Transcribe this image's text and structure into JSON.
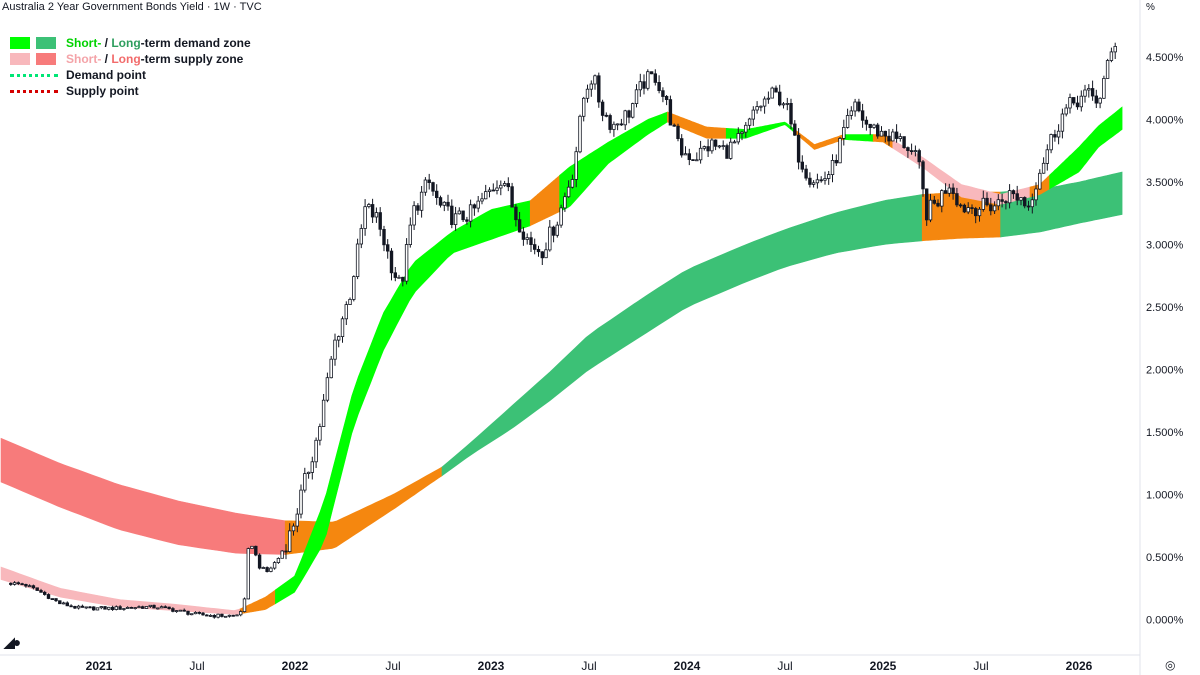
{
  "header": {
    "title": "Australia 2 Year Government Bonds Yield · 1W · TVC",
    "unit": "%"
  },
  "legend": {
    "demand_zone": {
      "short": "Short-",
      "sep": " / ",
      "long": "Long",
      "rest": "-term demand zone"
    },
    "supply_zone": {
      "short": "Short-",
      "sep": " / ",
      "long": "Long",
      "rest": "-term supply zone"
    },
    "demand_point": "Demand point",
    "supply_point": "Supply point"
  },
  "colors": {
    "short_demand": "#00ff00",
    "long_demand": "#3cc176",
    "short_supply": "#f8b8bc",
    "long_supply": "#f77b7b",
    "transition": "#f5870f",
    "demand_point": "#00e676",
    "supply_point": "#d50000",
    "candle": "#131722"
  },
  "icons": {
    "logo": "tradingview-logo-icon",
    "settings": "settings-icon"
  },
  "chart_data": {
    "type": "candlestick",
    "title": "Australia 2 Year Government Bonds Yield · 1W · TVC",
    "xlabel": "",
    "ylabel": "%",
    "x_range": [
      "2020-07",
      "2026-04"
    ],
    "ylim": [
      -0.15,
      4.8
    ],
    "grid": false,
    "legend_position": "top-left",
    "x_ticks": [
      {
        "x": 2021.0,
        "label": "2021",
        "year": true
      },
      {
        "x": 2021.5,
        "label": "Jul",
        "year": false
      },
      {
        "x": 2022.0,
        "label": "2022",
        "year": true
      },
      {
        "x": 2022.5,
        "label": "Jul",
        "year": false
      },
      {
        "x": 2023.0,
        "label": "2023",
        "year": true
      },
      {
        "x": 2023.5,
        "label": "Jul",
        "year": false
      },
      {
        "x": 2024.0,
        "label": "2024",
        "year": true
      },
      {
        "x": 2024.5,
        "label": "Jul",
        "year": false
      },
      {
        "x": 2025.0,
        "label": "2025",
        "year": true
      },
      {
        "x": 2025.5,
        "label": "Jul",
        "year": false
      },
      {
        "x": 2026.0,
        "label": "2026",
        "year": true
      }
    ],
    "y_ticks": [
      {
        "v": 0.0,
        "label": "0.000%"
      },
      {
        "v": 0.5,
        "label": "0.500%"
      },
      {
        "v": 1.0,
        "label": "1.000%"
      },
      {
        "v": 1.5,
        "label": "1.500%"
      },
      {
        "v": 2.0,
        "label": "2.000%"
      },
      {
        "v": 2.5,
        "label": "2.500%"
      },
      {
        "v": 3.0,
        "label": "3.000%"
      },
      {
        "v": 3.5,
        "label": "3.500%"
      },
      {
        "v": 4.0,
        "label": "4.000%"
      },
      {
        "v": 4.5,
        "label": "4.500%"
      }
    ],
    "price_path": [
      [
        2020.55,
        0.29
      ],
      [
        2020.62,
        0.28
      ],
      [
        2020.7,
        0.22
      ],
      [
        2020.8,
        0.13
      ],
      [
        2020.9,
        0.09
      ],
      [
        2021.0,
        0.09
      ],
      [
        2021.1,
        0.09
      ],
      [
        2021.2,
        0.1
      ],
      [
        2021.3,
        0.1
      ],
      [
        2021.4,
        0.07
      ],
      [
        2021.5,
        0.04
      ],
      [
        2021.6,
        0.03
      ],
      [
        2021.7,
        0.03
      ],
      [
        2021.74,
        0.1
      ],
      [
        2021.76,
        0.55
      ],
      [
        2021.78,
        0.6
      ],
      [
        2021.82,
        0.42
      ],
      [
        2021.86,
        0.38
      ],
      [
        2021.92,
        0.5
      ],
      [
        2021.98,
        0.7
      ],
      [
        2022.05,
        1.1
      ],
      [
        2022.12,
        1.5
      ],
      [
        2022.2,
        2.2
      ],
      [
        2022.28,
        2.6
      ],
      [
        2022.36,
        3.3
      ],
      [
        2022.42,
        3.2
      ],
      [
        2022.5,
        2.8
      ],
      [
        2022.54,
        2.65
      ],
      [
        2022.6,
        3.25
      ],
      [
        2022.68,
        3.5
      ],
      [
        2022.74,
        3.3
      ],
      [
        2022.82,
        3.2
      ],
      [
        2022.9,
        3.25
      ],
      [
        2022.98,
        3.4
      ],
      [
        2023.06,
        3.55
      ],
      [
        2023.12,
        3.25
      ],
      [
        2023.2,
        3.0
      ],
      [
        2023.26,
        2.95
      ],
      [
        2023.34,
        3.2
      ],
      [
        2023.42,
        3.6
      ],
      [
        2023.48,
        4.25
      ],
      [
        2023.52,
        4.35
      ],
      [
        2023.56,
        4.1
      ],
      [
        2023.62,
        3.95
      ],
      [
        2023.7,
        4.05
      ],
      [
        2023.78,
        4.3
      ],
      [
        2023.84,
        4.35
      ],
      [
        2023.9,
        4.1
      ],
      [
        2023.96,
        3.75
      ],
      [
        2024.04,
        3.7
      ],
      [
        2024.12,
        3.8
      ],
      [
        2024.2,
        3.75
      ],
      [
        2024.28,
        3.85
      ],
      [
        2024.36,
        4.1
      ],
      [
        2024.44,
        4.2
      ],
      [
        2024.5,
        4.15
      ],
      [
        2024.56,
        3.75
      ],
      [
        2024.62,
        3.55
      ],
      [
        2024.68,
        3.5
      ],
      [
        2024.74,
        3.6
      ],
      [
        2024.8,
        3.9
      ],
      [
        2024.86,
        4.1
      ],
      [
        2024.92,
        3.95
      ],
      [
        2024.98,
        3.9
      ],
      [
        2025.06,
        3.85
      ],
      [
        2025.12,
        3.8
      ],
      [
        2025.18,
        3.65
      ],
      [
        2025.22,
        3.25
      ],
      [
        2025.28,
        3.35
      ],
      [
        2025.34,
        3.5
      ],
      [
        2025.4,
        3.3
      ],
      [
        2025.5,
        3.3
      ],
      [
        2025.58,
        3.32
      ],
      [
        2025.64,
        3.4
      ],
      [
        2025.7,
        3.38
      ],
      [
        2025.74,
        3.3
      ],
      [
        2025.8,
        3.6
      ],
      [
        2025.86,
        3.85
      ],
      [
        2025.92,
        4.05
      ],
      [
        2025.98,
        4.15
      ],
      [
        2026.04,
        4.2
      ],
      [
        2026.1,
        4.15
      ],
      [
        2026.16,
        4.5
      ],
      [
        2026.2,
        4.7
      ]
    ],
    "long_zone": {
      "x": [
        2020.5,
        2020.8,
        2021.1,
        2021.4,
        2021.7,
        2021.95,
        2022.2,
        2022.5,
        2022.75,
        2022.9,
        2023.1,
        2023.3,
        2023.5,
        2023.8,
        2024.0,
        2024.3,
        2024.5,
        2024.75,
        2025.0,
        2025.2,
        2025.4,
        2025.6,
        2025.8,
        2026.0,
        2026.22
      ],
      "upper": [
        1.45,
        1.25,
        1.08,
        0.95,
        0.85,
        0.79,
        0.78,
        1.0,
        1.22,
        1.42,
        1.7,
        1.98,
        2.28,
        2.6,
        2.8,
        3.0,
        3.12,
        3.25,
        3.35,
        3.4,
        3.42,
        3.42,
        3.44,
        3.5,
        3.58
      ],
      "lower": [
        1.1,
        0.9,
        0.72,
        0.6,
        0.53,
        0.52,
        0.57,
        0.88,
        1.15,
        1.32,
        1.52,
        1.75,
        2.0,
        2.3,
        2.5,
        2.7,
        2.82,
        2.93,
        3.0,
        3.03,
        3.05,
        3.06,
        3.1,
        3.17,
        3.24
      ],
      "segments": [
        {
          "from": 2020.5,
          "to": 2021.95,
          "state": "supply"
        },
        {
          "from": 2021.95,
          "to": 2022.75,
          "state": "transition"
        },
        {
          "from": 2022.75,
          "to": 2025.2,
          "state": "demand"
        },
        {
          "from": 2025.2,
          "to": 2025.6,
          "state": "transition"
        },
        {
          "from": 2025.6,
          "to": 2026.22,
          "state": "demand"
        }
      ]
    },
    "short_zone": {
      "x": [
        2020.5,
        2020.8,
        2021.1,
        2021.4,
        2021.7,
        2021.85,
        2022.0,
        2022.15,
        2022.3,
        2022.45,
        2022.6,
        2022.8,
        2023.0,
        2023.2,
        2023.4,
        2023.6,
        2023.8,
        2023.9,
        2024.1,
        2024.3,
        2024.5,
        2024.65,
        2024.8,
        2025.0,
        2025.2,
        2025.4,
        2025.6,
        2025.8,
        2026.0,
        2026.1,
        2026.22
      ],
      "upper": [
        0.42,
        0.25,
        0.16,
        0.12,
        0.07,
        0.18,
        0.35,
        0.95,
        1.85,
        2.45,
        2.85,
        3.1,
        3.28,
        3.35,
        3.62,
        3.82,
        4.0,
        4.06,
        3.94,
        3.92,
        3.98,
        3.8,
        3.88,
        3.88,
        3.7,
        3.48,
        3.4,
        3.48,
        3.78,
        3.95,
        4.1
      ],
      "lower": [
        0.32,
        0.18,
        0.1,
        0.07,
        0.04,
        0.08,
        0.22,
        0.62,
        1.55,
        2.15,
        2.6,
        2.93,
        3.04,
        3.15,
        3.3,
        3.65,
        3.88,
        3.98,
        3.85,
        3.85,
        3.96,
        3.76,
        3.84,
        3.82,
        3.62,
        3.38,
        3.32,
        3.4,
        3.58,
        3.78,
        3.92
      ],
      "segments": [
        {
          "from": 2020.5,
          "to": 2021.72,
          "state": "supply"
        },
        {
          "from": 2021.72,
          "to": 2021.9,
          "state": "transition"
        },
        {
          "from": 2021.9,
          "to": 2023.2,
          "state": "demand"
        },
        {
          "from": 2023.2,
          "to": 2023.35,
          "state": "transition"
        },
        {
          "from": 2023.35,
          "to": 2023.9,
          "state": "demand"
        },
        {
          "from": 2023.9,
          "to": 2024.2,
          "state": "transition"
        },
        {
          "from": 2024.2,
          "to": 2024.55,
          "state": "demand"
        },
        {
          "from": 2024.55,
          "to": 2024.8,
          "state": "transition"
        },
        {
          "from": 2024.8,
          "to": 2024.95,
          "state": "demand"
        },
        {
          "from": 2024.95,
          "to": 2025.05,
          "state": "transition"
        },
        {
          "from": 2025.05,
          "to": 2025.75,
          "state": "supply"
        },
        {
          "from": 2025.75,
          "to": 2025.85,
          "state": "transition"
        },
        {
          "from": 2025.85,
          "to": 2026.22,
          "state": "demand"
        }
      ]
    }
  }
}
